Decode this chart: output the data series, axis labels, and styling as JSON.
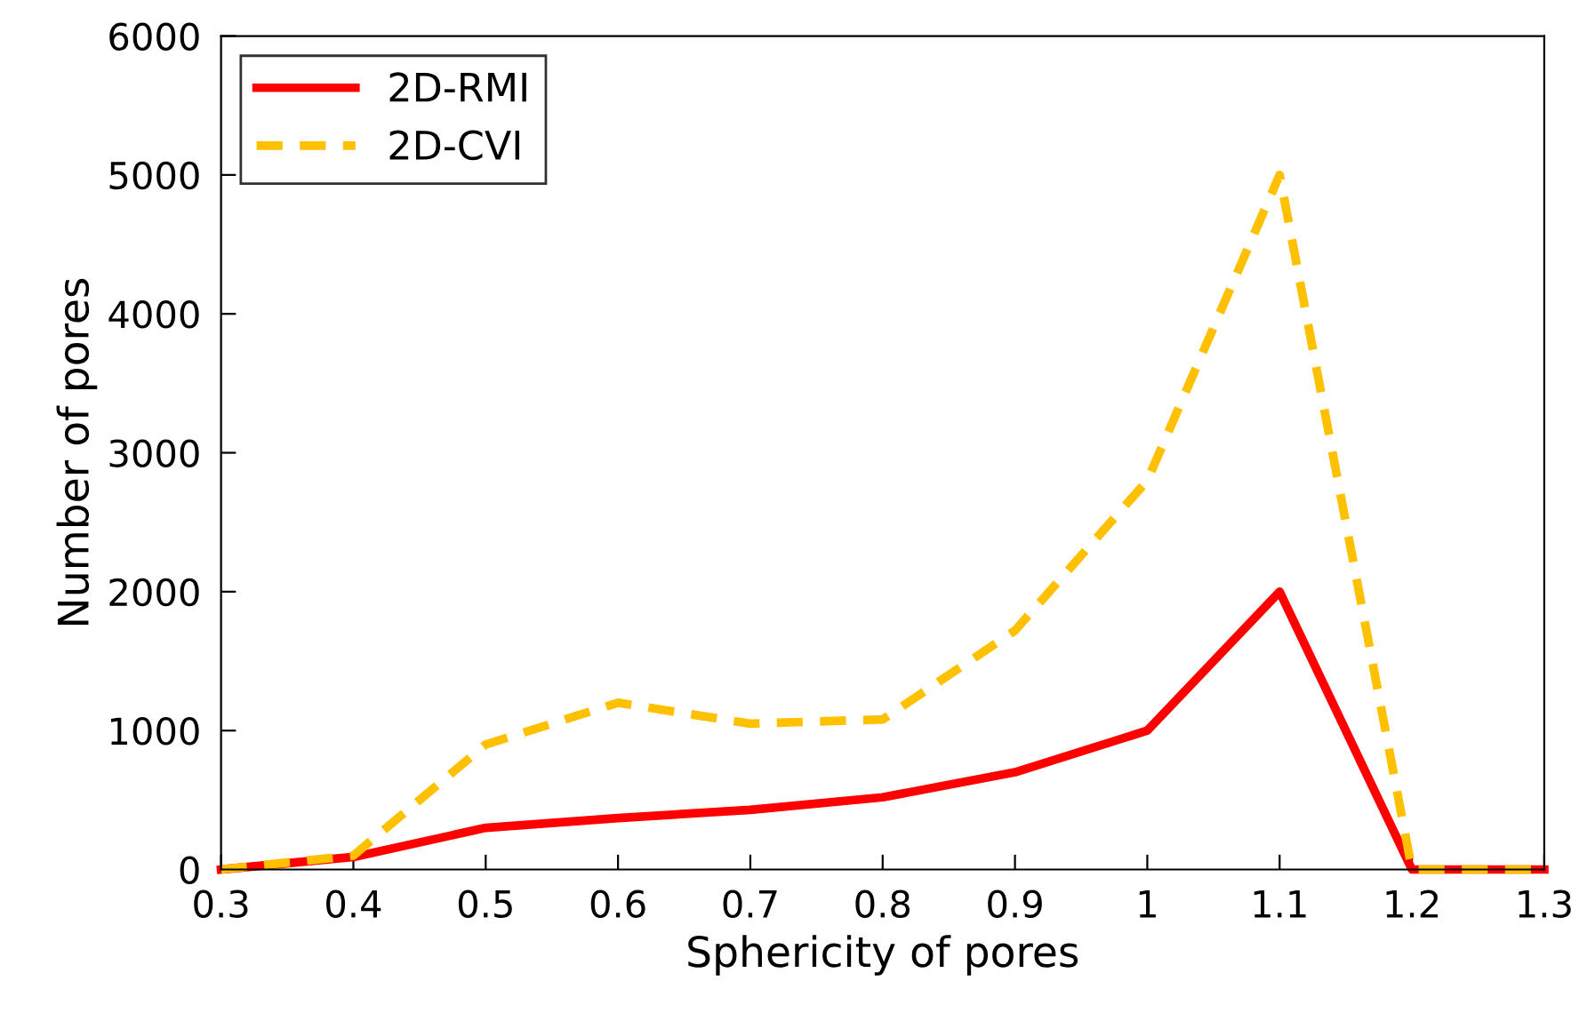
{
  "chart_data": {
    "type": "line",
    "xlabel": "Sphericity of pores",
    "ylabel": "Number of pores",
    "x": [
      0.3,
      0.4,
      0.5,
      0.6,
      0.7,
      0.8,
      0.9,
      1,
      1.1,
      1.2,
      1.3
    ],
    "series": [
      {
        "name": "2D-RMI",
        "color": "#ff0000",
        "line_style": "solid",
        "values": [
          0,
          90,
          300,
          370,
          430,
          520,
          700,
          1000,
          2000,
          0,
          0
        ]
      },
      {
        "name": "2D-CVI",
        "color": "#ffc000",
        "line_style": "dashed",
        "values": [
          0,
          100,
          900,
          1200,
          1050,
          1080,
          1720,
          2800,
          5000,
          0,
          0
        ]
      }
    ],
    "xlim": [
      0.3,
      1.3
    ],
    "xticks": [
      0.3,
      0.4,
      0.5,
      0.6,
      0.7,
      0.8,
      0.9,
      1,
      1.1,
      1.2,
      1.3
    ],
    "ylim": [
      0,
      6000
    ],
    "yticks": [
      0,
      1000,
      2000,
      3000,
      4000,
      5000,
      6000
    ],
    "grid": false,
    "legend": "top left",
    "marker": "none"
  }
}
